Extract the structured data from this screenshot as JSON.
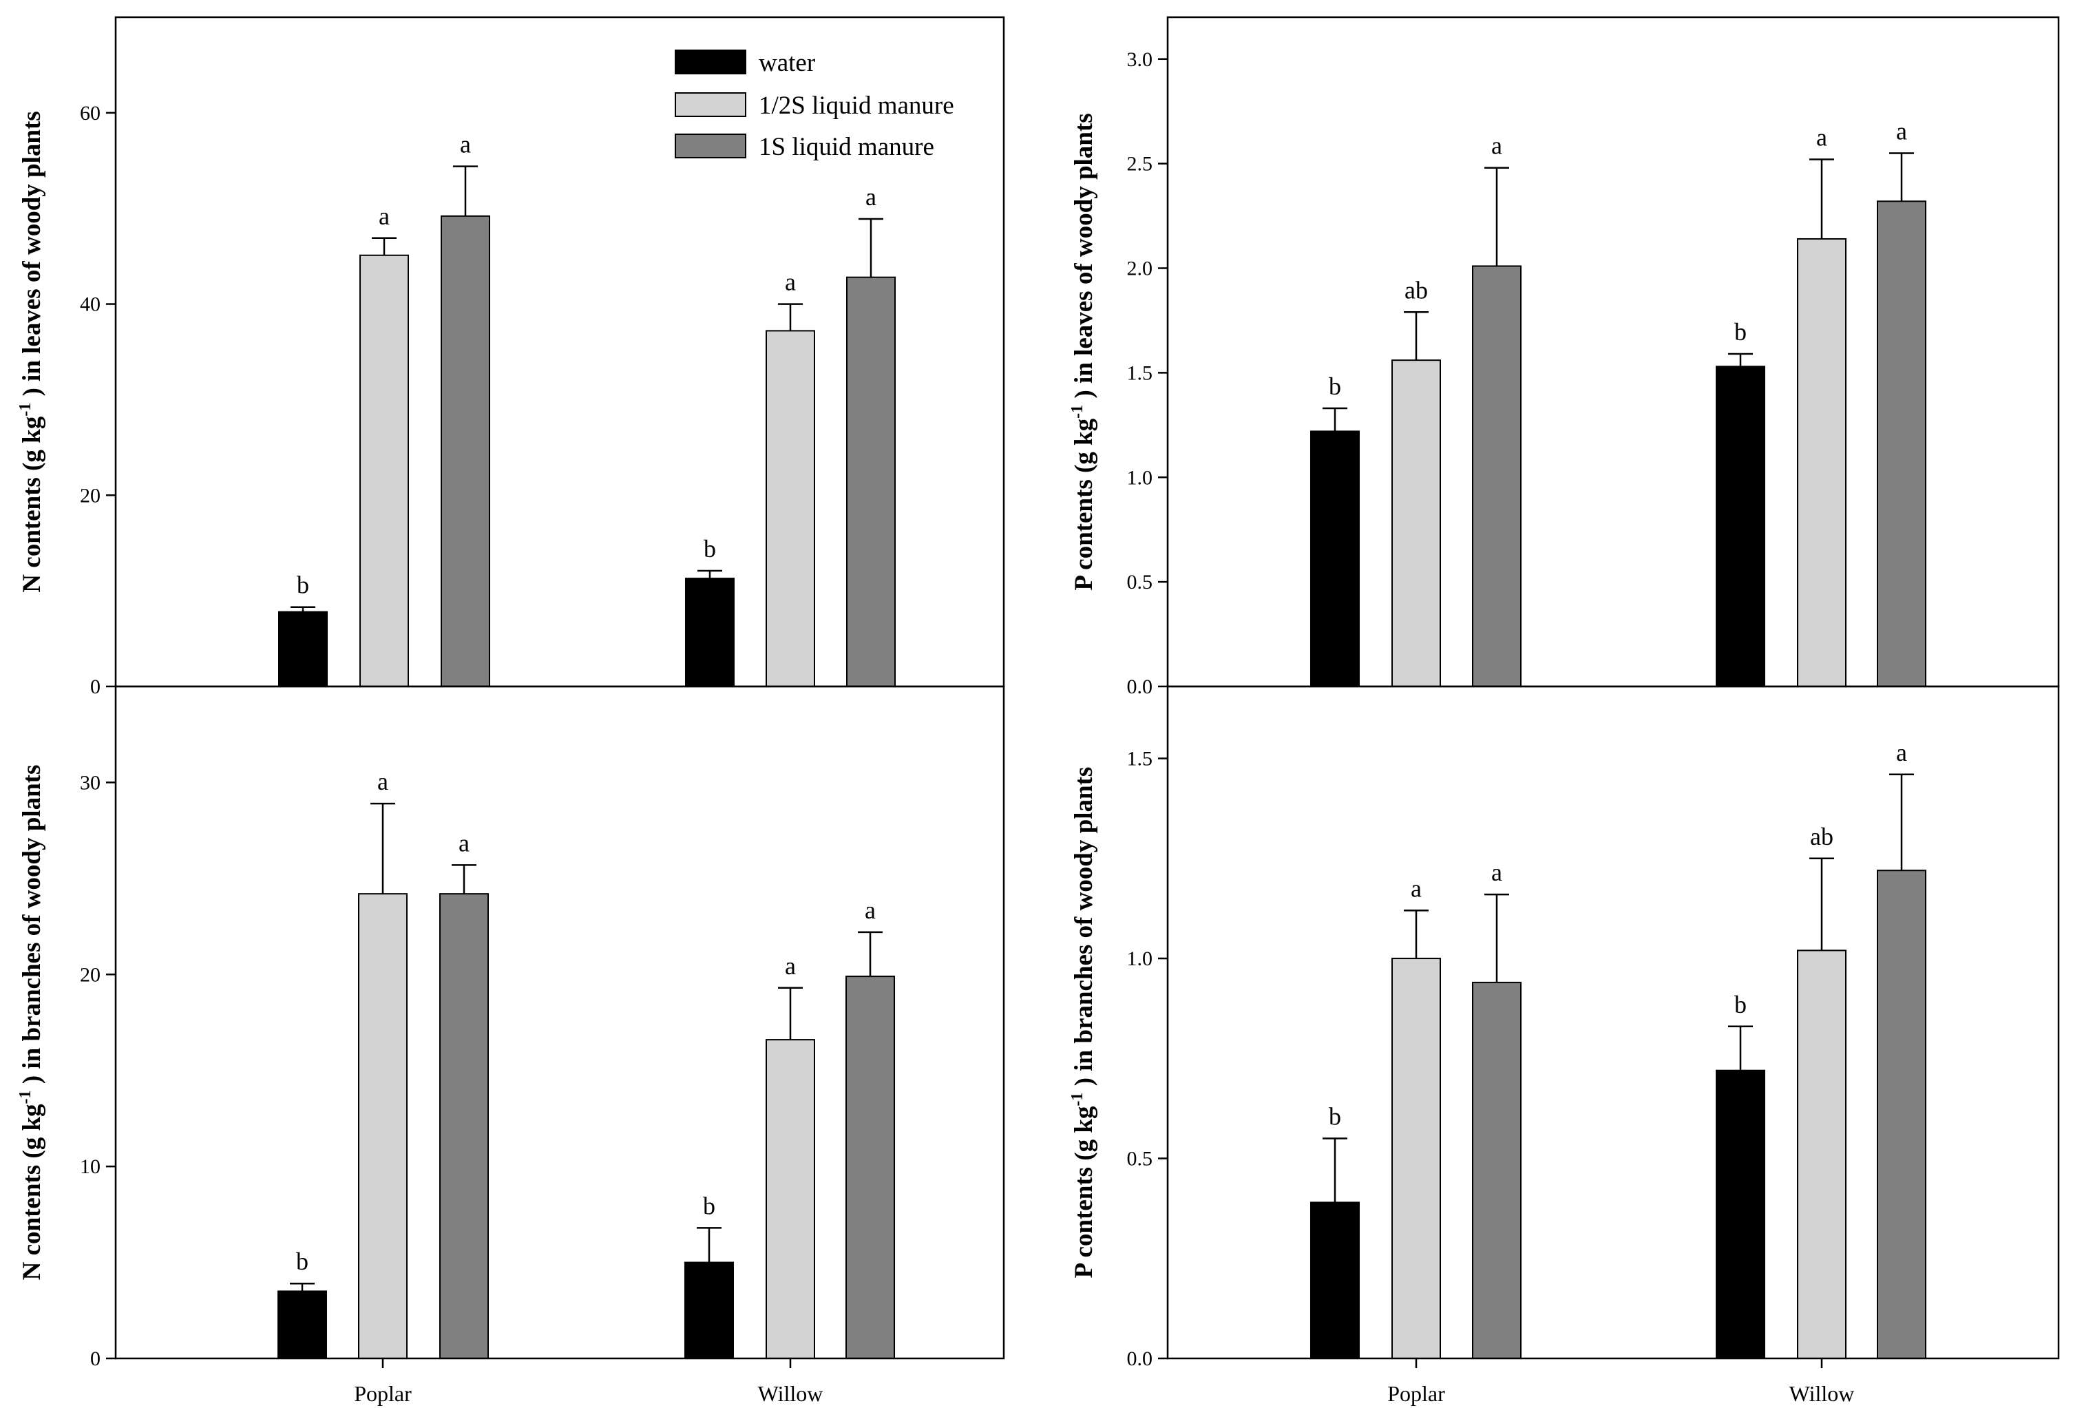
{
  "colors": {
    "water": "#000000",
    "half": "#d3d3d3",
    "full": "#808080",
    "axis": "#000000"
  },
  "legend": {
    "items": [
      {
        "key": "water",
        "label": "water"
      },
      {
        "key": "half",
        "label": "1/2S liquid manure"
      },
      {
        "key": "full",
        "label": "1S liquid manure"
      }
    ]
  },
  "chart_data": [
    {
      "id": "n-leaves",
      "type": "bar",
      "ylabel": {
        "pre": "N contents (g kg",
        "sup": "-1",
        "post": ") in leaves of woody plants"
      },
      "ylim": [
        0,
        70
      ],
      "yticks": [
        0,
        20,
        40,
        60
      ],
      "tick_labels": [
        "0",
        "20",
        "40",
        "60"
      ],
      "categories": [
        "Poplar",
        "Willow"
      ],
      "series": [
        {
          "key": "water",
          "name": "water",
          "values": [
            7.8,
            11.3
          ],
          "errors": [
            0.5,
            0.8
          ],
          "letters": [
            "b",
            "b"
          ]
        },
        {
          "key": "half",
          "name": "1/2S liquid manure",
          "values": [
            45.1,
            37.2
          ],
          "errors": [
            1.8,
            2.8
          ],
          "letters": [
            "a",
            "a"
          ]
        },
        {
          "key": "full",
          "name": "1S liquid manure",
          "values": [
            49.2,
            42.8
          ],
          "errors": [
            5.2,
            6.1
          ],
          "letters": [
            "a",
            "a"
          ]
        }
      ]
    },
    {
      "id": "p-leaves",
      "type": "bar",
      "ylabel": {
        "pre": "P contents (g kg",
        "sup": "-1",
        "post": ") in leaves of woody plants"
      },
      "ylim": [
        0,
        3.2
      ],
      "yticks": [
        0,
        0.5,
        1.0,
        1.5,
        2.0,
        2.5,
        3.0
      ],
      "tick_labels": [
        "0.0",
        "0.5",
        "1.0",
        "1.5",
        "2.0",
        "2.5",
        "3.0"
      ],
      "categories": [
        "Poplar",
        "Willow"
      ],
      "series": [
        {
          "key": "water",
          "name": "water",
          "values": [
            1.22,
            1.53
          ],
          "errors": [
            0.11,
            0.06
          ],
          "letters": [
            "b",
            "b"
          ]
        },
        {
          "key": "half",
          "name": "1/2S liquid manure",
          "values": [
            1.56,
            2.14
          ],
          "errors": [
            0.23,
            0.38
          ],
          "letters": [
            "ab",
            "a"
          ]
        },
        {
          "key": "full",
          "name": "1S liquid manure",
          "values": [
            2.01,
            2.32
          ],
          "errors": [
            0.47,
            0.23
          ],
          "letters": [
            "a",
            "a"
          ]
        }
      ]
    },
    {
      "id": "n-branches",
      "type": "bar",
      "ylabel": {
        "pre": "N contents (g kg",
        "sup": "-1",
        "post": ") in branches of woody plants"
      },
      "ylim": [
        0,
        35
      ],
      "yticks": [
        0,
        10,
        20,
        30
      ],
      "tick_labels": [
        "0",
        "10",
        "20",
        "30"
      ],
      "categories": [
        "Poplar",
        "Willow"
      ],
      "series": [
        {
          "key": "water",
          "name": "water",
          "values": [
            3.5,
            5.0
          ],
          "errors": [
            0.4,
            1.8
          ],
          "letters": [
            "b",
            "b"
          ]
        },
        {
          "key": "half",
          "name": "1/2S liquid manure",
          "values": [
            24.2,
            16.6
          ],
          "errors": [
            4.7,
            2.7
          ],
          "letters": [
            "a",
            "a"
          ]
        },
        {
          "key": "full",
          "name": "1S liquid manure",
          "values": [
            24.2,
            19.9
          ],
          "errors": [
            1.5,
            2.3
          ],
          "letters": [
            "a",
            "a"
          ]
        }
      ]
    },
    {
      "id": "p-branches",
      "type": "bar",
      "ylabel": {
        "pre": "P contents (g kg",
        "sup": "-1",
        "post": ") in branches of woody plants"
      },
      "ylim": [
        0,
        1.68
      ],
      "yticks": [
        0,
        0.5,
        1.0,
        1.5
      ],
      "tick_labels": [
        "0.0",
        "0.5",
        "1.0",
        "1.5"
      ],
      "categories": [
        "Poplar",
        "Willow"
      ],
      "series": [
        {
          "key": "water",
          "name": "water",
          "values": [
            0.39,
            0.72
          ],
          "errors": [
            0.16,
            0.11
          ],
          "letters": [
            "b",
            "b"
          ]
        },
        {
          "key": "half",
          "name": "1/2S liquid manure",
          "values": [
            1.0,
            1.02
          ],
          "errors": [
            0.12,
            0.23
          ],
          "letters": [
            "a",
            "ab"
          ]
        },
        {
          "key": "full",
          "name": "1S liquid manure",
          "values": [
            0.94,
            1.22
          ],
          "errors": [
            0.22,
            0.24
          ],
          "letters": [
            "a",
            "a"
          ]
        }
      ]
    }
  ]
}
